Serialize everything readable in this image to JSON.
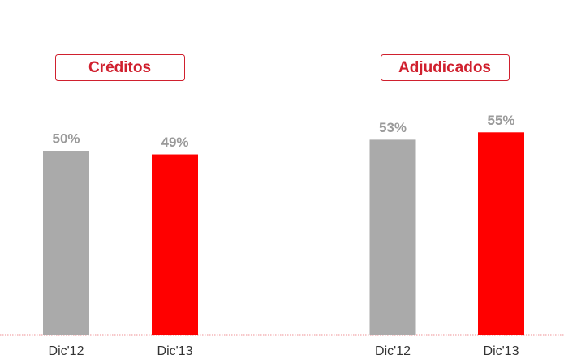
{
  "chart_data": [
    {
      "type": "bar",
      "title": "Créditos",
      "categories": [
        "Dic'12",
        "Dic'13"
      ],
      "values": [
        50,
        49
      ],
      "value_labels": [
        "50%",
        "49%"
      ],
      "colors": [
        "#aaaaaa",
        "#ff0000"
      ]
    },
    {
      "type": "bar",
      "title": "Adjudicados",
      "categories": [
        "Dic'12",
        "Dic'13"
      ],
      "values": [
        53,
        55
      ],
      "value_labels": [
        "53%",
        "55%"
      ],
      "colors": [
        "#aaaaaa",
        "#ff0000"
      ]
    }
  ]
}
